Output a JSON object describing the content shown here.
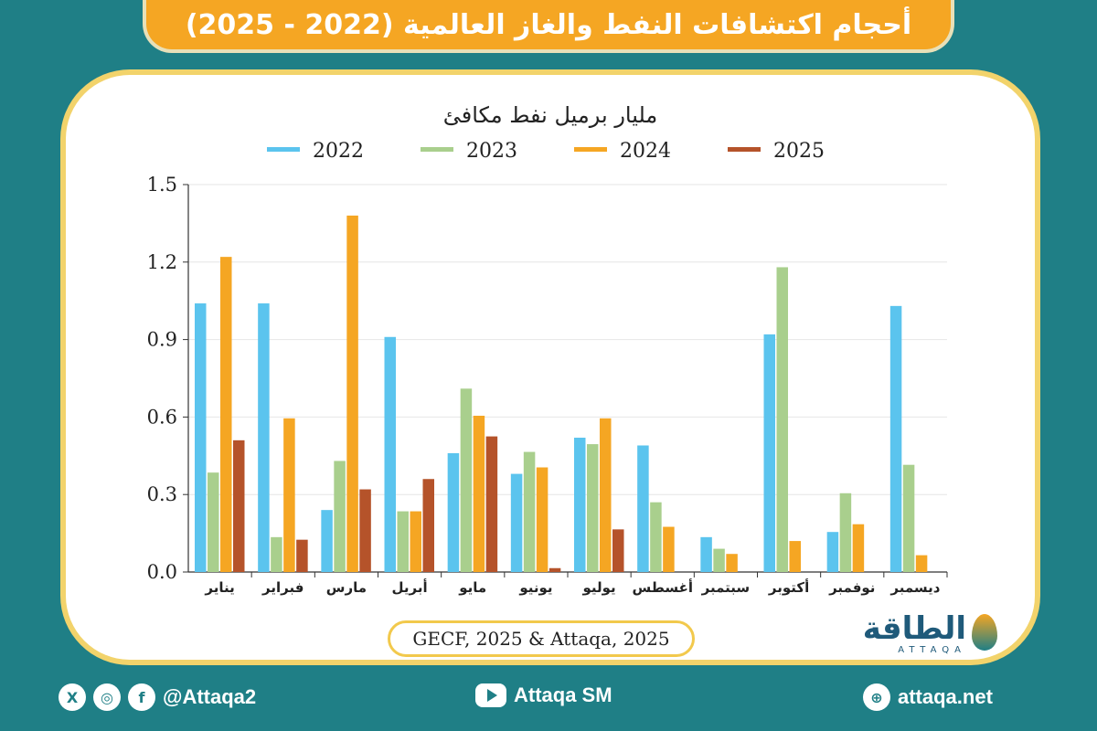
{
  "title": "أحجام اكتشافات النفط والغاز العالمية (2022 - 2025)",
  "source": "GECF, 2025 & Attaqa, 2025",
  "logo": {
    "text": "الطاقة",
    "sub": "ATTAQA"
  },
  "footer": {
    "social_handle": "@Attaqa2",
    "youtube": "Attaqa SM",
    "website": "attaqa.net",
    "icons": [
      "x-icon",
      "instagram-icon",
      "facebook-icon",
      "youtube-icon",
      "globe-icon"
    ]
  },
  "colors": {
    "2022": "#5bc4ee",
    "2023": "#a9cf8d",
    "2024": "#f5a623",
    "2025": "#b5532a",
    "frame": "#1f7f86",
    "accent": "#f5a623"
  },
  "chart_data": {
    "type": "bar",
    "title": "مليار برميل نفط مكافئ",
    "categories": [
      "يناير",
      "فبراير",
      "مارس",
      "أبريل",
      "مايو",
      "يونيو",
      "يوليو",
      "أغسطس",
      "سبتمبر",
      "أكتوبر",
      "نوفمبر",
      "ديسمبر"
    ],
    "series": [
      {
        "name": "2022",
        "values": [
          1.04,
          1.04,
          0.24,
          0.91,
          0.46,
          0.38,
          0.52,
          0.49,
          0.135,
          0.92,
          0.155,
          1.03
        ]
      },
      {
        "name": "2023",
        "values": [
          0.385,
          0.135,
          0.43,
          0.235,
          0.71,
          0.465,
          0.495,
          0.27,
          0.09,
          1.18,
          0.305,
          0.415
        ]
      },
      {
        "name": "2024",
        "values": [
          1.22,
          0.595,
          1.38,
          0.235,
          0.605,
          0.405,
          0.595,
          0.175,
          0.07,
          0.12,
          0.185,
          0.065
        ]
      },
      {
        "name": "2025",
        "values": [
          0.51,
          0.125,
          0.32,
          0.36,
          0.525,
          0.015,
          0.165,
          null,
          null,
          null,
          null,
          null
        ]
      }
    ],
    "yticks": [
      "0.0",
      "0.3",
      "0.6",
      "0.9",
      "1.2",
      "1.5"
    ],
    "ylim": [
      0,
      1.5
    ],
    "legend": "top",
    "grid": true
  }
}
